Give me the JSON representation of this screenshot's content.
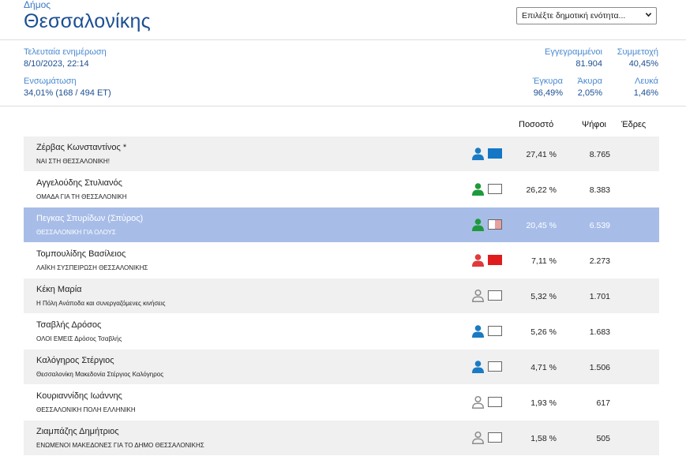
{
  "header": {
    "kicker": "Δήμος",
    "title": "Θεσσαλονίκης",
    "unit_select_value": "Επιλέξτε δημοτική ενότητα..."
  },
  "stats": {
    "updated_label": "Τελευταία ενημέρωση",
    "updated_value": "8/10/2023, 22:14",
    "integrated_label": "Ενσωμάτωση",
    "integrated_value": "34,01% (168 / 494 ΕΤ)",
    "registered_label": "Εγγεγραμμένοι",
    "registered_value": "81.904",
    "turnout_label": "Συμμετοχή",
    "turnout_value": "40,45%",
    "valid_label": "Έγκυρα",
    "valid_value": "96,49%",
    "invalid_label": "Άκυρα",
    "invalid_value": "2,05%",
    "blank_label": "Λευκά",
    "blank_value": "1,46%"
  },
  "columns": {
    "percent": "Ποσοστό",
    "votes": "Ψήφοι",
    "seats": "Έδρες"
  },
  "colors": {
    "person_blue": "#1a7bc4",
    "person_green": "#1e9a3c",
    "person_red": "#e03a3a",
    "person_gray": "#8c8c8c",
    "swatch_blue": "#1477c6",
    "swatch_red": "#e01c1c",
    "swatch_pink": "#e6a0a0",
    "selected_row": "#a7bde8"
  },
  "candidates": [
    {
      "name": "Ζέρβας Κωνσταντίνος *",
      "party": "ΝΑΙ ΣΤΗ ΘΕΣΣΑΛΟΝΙΚΗ!",
      "percent": "27,41 %",
      "votes": "8.765",
      "person_icon": "person-blue-icon",
      "swatch": "blue"
    },
    {
      "name": "Αγγελούδης Στυλιανός",
      "party": "ΟΜΑΔΑ ΓΙΑ ΤΗ ΘΕΣΣΑΛΟΝΙΚΗ",
      "percent": "26,22 %",
      "votes": "8.383",
      "person_icon": "person-green-icon",
      "swatch": "white"
    },
    {
      "name": "Πεγκας Σπυρίδων (Σπύρος)",
      "party": "ΘΕΣΣΑΛΟΝΙΚΗ ΓΙΑ ΟΛΟΥΣ",
      "percent": "20,45 %",
      "votes": "6.539",
      "person_icon": "person-green-icon",
      "swatch": "split-pink",
      "selected": true
    },
    {
      "name": "Τομπουλίδης Βασίλειος",
      "party": "ΛΑΪΚΗ ΣΥΣΠΕΙΡΩΣΗ ΘΕΣΣΑΛΟΝΙΚΗΣ",
      "percent": "7,11 %",
      "votes": "2.273",
      "person_icon": "person-red-icon",
      "swatch": "red"
    },
    {
      "name": "Κέκη Μαρία",
      "party": "Η Πόλη Ανάποδα και συνεργαζόμενες κινήσεις",
      "percent": "5,32 %",
      "votes": "1.701",
      "person_icon": "person-gray-icon",
      "swatch": "white"
    },
    {
      "name": "Τσαβλής Δρόσος",
      "party": "ΟΛΟΙ ΕΜΕΙΣ Δρόσος Τσαβλής",
      "percent": "5,26 %",
      "votes": "1.683",
      "person_icon": "person-blue-icon",
      "swatch": "white"
    },
    {
      "name": "Καλόγηρος Στέργιος",
      "party": "Θεσσαλονίκη Μακεδονία Στέργιος Καλόγηρος",
      "percent": "4,71 %",
      "votes": "1.506",
      "person_icon": "person-blue-icon",
      "swatch": "white"
    },
    {
      "name": "Κουριαννίδης Ιωάννης",
      "party": "ΘΕΣΣΑΛΟΝΙΚΗ ΠΟΛΗ ΕΛΛΗΝΙΚΗ",
      "percent": "1,93 %",
      "votes": "617",
      "person_icon": "person-gray-icon",
      "swatch": "white"
    },
    {
      "name": "Ζιαμπάζης Δημήτριος",
      "party": "ΕΝΩΜΕΝΟΙ ΜΑΚΕΔΟΝΕΣ ΓΙΑ ΤΟ ΔΗΜΟ ΘΕΣΣΑΛΟΝΙΚΗΣ",
      "percent": "1,58 %",
      "votes": "505",
      "person_icon": "person-gray-icon",
      "swatch": "white"
    }
  ]
}
